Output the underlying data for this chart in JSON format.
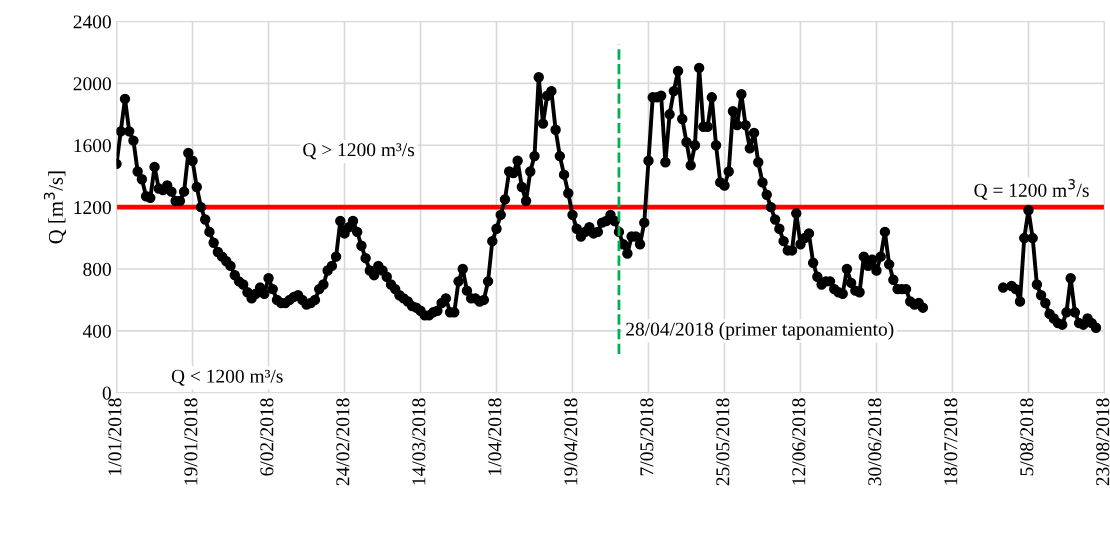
{
  "chart_data": {
    "type": "line",
    "ylabel": "Q [m$^{3}$/s]",
    "x": [
      "2018-01-01",
      "2018-01-02",
      "2018-01-03",
      "2018-01-04",
      "2018-01-05",
      "2018-01-06",
      "2018-01-07",
      "2018-01-08",
      "2018-01-09",
      "2018-01-10",
      "2018-01-11",
      "2018-01-12",
      "2018-01-13",
      "2018-01-14",
      "2018-01-15",
      "2018-01-16",
      "2018-01-17",
      "2018-01-18",
      "2018-01-19",
      "2018-01-20",
      "2018-01-21",
      "2018-01-22",
      "2018-01-23",
      "2018-01-24",
      "2018-01-25",
      "2018-01-26",
      "2018-01-27",
      "2018-01-28",
      "2018-01-29",
      "2018-01-30",
      "2018-01-31",
      "2018-02-01",
      "2018-02-02",
      "2018-02-03",
      "2018-02-04",
      "2018-02-05",
      "2018-02-06",
      "2018-02-07",
      "2018-02-08",
      "2018-02-09",
      "2018-02-10",
      "2018-02-11",
      "2018-02-12",
      "2018-02-13",
      "2018-02-14",
      "2018-02-15",
      "2018-02-16",
      "2018-02-17",
      "2018-02-18",
      "2018-02-19",
      "2018-02-20",
      "2018-02-21",
      "2018-02-22",
      "2018-02-23",
      "2018-02-24",
      "2018-02-25",
      "2018-02-26",
      "2018-02-27",
      "2018-02-28",
      "2018-03-01",
      "2018-03-02",
      "2018-03-03",
      "2018-03-04",
      "2018-03-05",
      "2018-03-06",
      "2018-03-07",
      "2018-03-08",
      "2018-03-09",
      "2018-03-10",
      "2018-03-11",
      "2018-03-12",
      "2018-03-13",
      "2018-03-14",
      "2018-03-15",
      "2018-03-16",
      "2018-03-17",
      "2018-03-18",
      "2018-03-19",
      "2018-03-20",
      "2018-03-21",
      "2018-03-22",
      "2018-03-23",
      "2018-03-24",
      "2018-03-25",
      "2018-03-26",
      "2018-03-27",
      "2018-03-28",
      "2018-03-29",
      "2018-03-30",
      "2018-03-31",
      "2018-04-01",
      "2018-04-02",
      "2018-04-03",
      "2018-04-04",
      "2018-04-05",
      "2018-04-06",
      "2018-04-07",
      "2018-04-08",
      "2018-04-09",
      "2018-04-10",
      "2018-04-11",
      "2018-04-12",
      "2018-04-13",
      "2018-04-14",
      "2018-04-15",
      "2018-04-16",
      "2018-04-17",
      "2018-04-18",
      "2018-04-19",
      "2018-04-20",
      "2018-04-21",
      "2018-04-22",
      "2018-04-23",
      "2018-04-24",
      "2018-04-25",
      "2018-04-26",
      "2018-04-27",
      "2018-04-28",
      "2018-04-29",
      "2018-04-30",
      "2018-05-01",
      "2018-05-02",
      "2018-05-03",
      "2018-05-04",
      "2018-05-05",
      "2018-05-06",
      "2018-05-07",
      "2018-05-08",
      "2018-05-09",
      "2018-05-10",
      "2018-05-11",
      "2018-05-12",
      "2018-05-13",
      "2018-05-14",
      "2018-05-15",
      "2018-05-16",
      "2018-05-17",
      "2018-05-18",
      "2018-05-19",
      "2018-05-20",
      "2018-05-21",
      "2018-05-22",
      "2018-05-23",
      "2018-05-24",
      "2018-05-25",
      "2018-05-26",
      "2018-05-27",
      "2018-05-28",
      "2018-05-29",
      "2018-05-30",
      "2018-05-31",
      "2018-06-01",
      "2018-06-02",
      "2018-06-03",
      "2018-06-04",
      "2018-06-05",
      "2018-06-06",
      "2018-06-07",
      "2018-06-08",
      "2018-06-09",
      "2018-06-10",
      "2018-06-11",
      "2018-06-12",
      "2018-06-13",
      "2018-06-14",
      "2018-06-15",
      "2018-06-16",
      "2018-06-17",
      "2018-06-18",
      "2018-06-19",
      "2018-06-20",
      "2018-06-21",
      "2018-06-22",
      "2018-06-23",
      "2018-06-24",
      "2018-06-25",
      "2018-06-26",
      "2018-06-27",
      "2018-06-28",
      "2018-06-29",
      "2018-06-30",
      "2018-07-01",
      "2018-07-02",
      "2018-07-03",
      "2018-07-04",
      "2018-07-05",
      "2018-07-06",
      "2018-07-07",
      "2018-07-08",
      "2018-07-09",
      "2018-07-10",
      "2018-07-11",
      "2018-07-20",
      "2018-07-30",
      "2018-08-01",
      "2018-08-02",
      "2018-08-03",
      "2018-08-04",
      "2018-08-05",
      "2018-08-06",
      "2018-08-07",
      "2018-08-08",
      "2018-08-09",
      "2018-08-10",
      "2018-08-11",
      "2018-08-12",
      "2018-08-13",
      "2018-08-14",
      "2018-08-15",
      "2018-08-16",
      "2018-08-17",
      "2018-08-18",
      "2018-08-19",
      "2018-08-20",
      "2018-08-21"
    ],
    "series": [
      {
        "color": "#000000",
        "values": [
          1480,
          1690,
          1900,
          1690,
          1630,
          1430,
          1380,
          1270,
          1260,
          1460,
          1320,
          1310,
          1340,
          1300,
          1240,
          1240,
          1300,
          1550,
          1500,
          1330,
          1200,
          1120,
          1040,
          970,
          910,
          880,
          850,
          820,
          760,
          720,
          700,
          650,
          610,
          640,
          680,
          640,
          740,
          670,
          600,
          580,
          580,
          600,
          620,
          630,
          600,
          570,
          580,
          600,
          670,
          700,
          790,
          820,
          880,
          1110,
          1030,
          1070,
          1110,
          1040,
          950,
          870,
          790,
          760,
          820,
          790,
          750,
          700,
          670,
          630,
          610,
          590,
          560,
          550,
          530,
          500,
          500,
          520,
          530,
          580,
          610,
          520,
          520,
          720,
          800,
          660,
          610,
          610,
          590,
          600,
          720,
          980,
          1060,
          1150,
          1250,
          1430,
          1420,
          1500,
          1330,
          1240,
          1430,
          1530,
          2040,
          1740,
          1920,
          1950,
          1700,
          1530,
          1410,
          1290,
          1150,
          1060,
          1010,
          1040,
          1070,
          1030,
          1040,
          1100,
          1110,
          1150,
          1110,
          1040,
          960,
          900,
          1010,
          1010,
          960,
          1100,
          1500,
          1910,
          1910,
          1920,
          1490,
          1800,
          1950,
          2080,
          1770,
          1620,
          1470,
          1600,
          2100,
          1720,
          1720,
          1910,
          1600,
          1360,
          1340,
          1430,
          1820,
          1730,
          1930,
          1730,
          1580,
          1680,
          1490,
          1360,
          1280,
          1200,
          1120,
          1060,
          980,
          920,
          920,
          1160,
          960,
          1000,
          1030,
          840,
          750,
          700,
          720,
          720,
          670,
          650,
          640,
          800,
          710,
          660,
          650,
          880,
          820,
          860,
          790,
          880,
          1040,
          830,
          730,
          670,
          670,
          670,
          590,
          570,
          580,
          550,
          null,
          680,
          690,
          670,
          590,
          1000,
          1180,
          1000,
          700,
          630,
          580,
          510,
          480,
          450,
          440,
          520,
          740,
          520,
          450,
          440,
          480,
          450,
          420
        ]
      }
    ],
    "xlim": [
      "2018-01-01",
      "2018-08-23"
    ],
    "xticks": [
      {
        "value": "2018-01-01",
        "label": "1/01/2018"
      },
      {
        "value": "2018-01-19",
        "label": "19/01/2018"
      },
      {
        "value": "2018-02-06",
        "label": "6/02/2018"
      },
      {
        "value": "2018-02-24",
        "label": "24/02/2018"
      },
      {
        "value": "2018-03-14",
        "label": "14/03/2018"
      },
      {
        "value": "2018-04-01",
        "label": "1/04/2018"
      },
      {
        "value": "2018-04-19",
        "label": "19/04/2018"
      },
      {
        "value": "2018-05-07",
        "label": "7/05/2018"
      },
      {
        "value": "2018-05-25",
        "label": "25/05/2018"
      },
      {
        "value": "2018-06-12",
        "label": "12/06/2018"
      },
      {
        "value": "2018-06-30",
        "label": "30/06/2018"
      },
      {
        "value": "2018-07-18",
        "label": "18/07/2018"
      },
      {
        "value": "2018-08-05",
        "label": "5/08/2018"
      },
      {
        "value": "2018-08-23",
        "label": "23/08/2018"
      }
    ],
    "ylim": [
      0,
      2400
    ],
    "yticks": [
      0,
      400,
      800,
      1200,
      1600,
      2000,
      2400
    ],
    "ref_lines": [
      {
        "axis": "y",
        "value": 1200,
        "label": "Q = 1200 m$^{3}$/s",
        "color": "#ff0000",
        "line_style": "solid"
      },
      {
        "axis": "x",
        "value": "2018-04-30",
        "label": "28/04/2018 (primer taponamiento)",
        "color": "#00b050",
        "line_style": "dashed"
      }
    ],
    "annotations": [
      "Q > 1200 m³/s",
      "Q < 1200 m³/s"
    ],
    "grid": true,
    "marker": "circle",
    "line_style": "solid",
    "legend": false
  }
}
